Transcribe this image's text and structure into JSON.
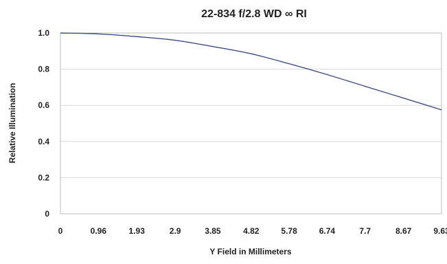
{
  "chart_data": {
    "type": "line",
    "title": "22-834 f/2.8  WD ∞ RI",
    "xlabel": "Y Field in Millimeters",
    "ylabel": "Relative Illumination",
    "xlim": [
      0,
      9.63
    ],
    "ylim": [
      0,
      1.0
    ],
    "x_ticks": [
      "0",
      "0.96",
      "1.93",
      "2.9",
      "3.85",
      "4.82",
      "5.78",
      "6.74",
      "7.7",
      "8.67",
      "9.63"
    ],
    "y_ticks": [
      "0",
      "0.2",
      "0.4",
      "0.6",
      "0.8",
      "1.0"
    ],
    "grid": true,
    "series": [
      {
        "color": "#3c4f8a",
        "x": [
          0,
          0.96,
          1.93,
          2.9,
          3.85,
          4.82,
          5.78,
          6.74,
          7.7,
          8.67,
          9.63
        ],
        "y": [
          1.0,
          0.995,
          0.98,
          0.96,
          0.925,
          0.885,
          0.83,
          0.77,
          0.705,
          0.64,
          0.575
        ]
      }
    ]
  }
}
